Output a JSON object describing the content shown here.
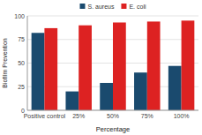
{
  "chart_data": {
    "type": "bar",
    "categories": [
      "Positive control",
      "25%",
      "50%",
      "75%",
      "100%"
    ],
    "series": [
      {
        "name": "S. aureus",
        "color": "#1a4a6e",
        "values": [
          82,
          20,
          29,
          40,
          47
        ]
      },
      {
        "name": "E. coli",
        "color": "#dd2222",
        "values": [
          87,
          90,
          93,
          94,
          95
        ]
      }
    ],
    "xlabel": "Percentage",
    "ylabel": "Biofilm Prevention",
    "ylim": [
      0,
      100
    ],
    "yticks": [
      0,
      25,
      50,
      75,
      100
    ],
    "grid": true,
    "legend": "top"
  }
}
